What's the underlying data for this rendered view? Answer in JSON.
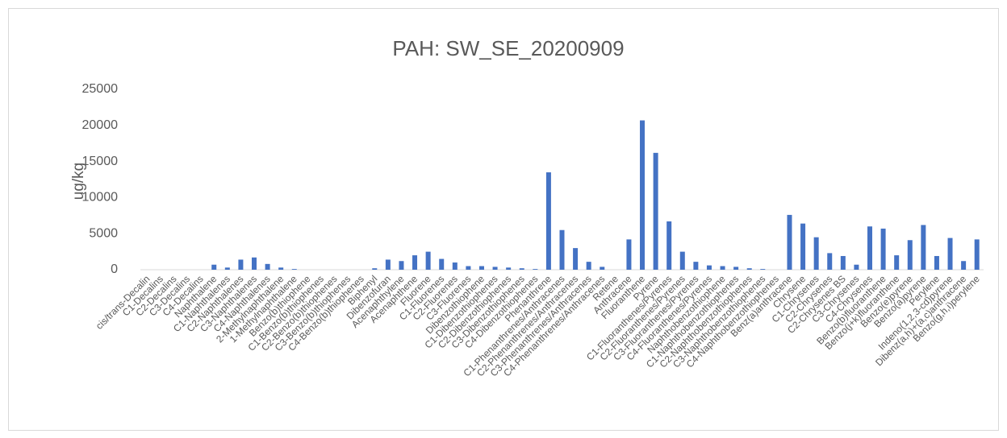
{
  "chart_data": {
    "type": "bar",
    "title": "PAH: SW_SE_20200909",
    "y_label": "ug/kg",
    "categories": [
      "cis/trans-Decalin",
      "C1-Decalins",
      "C2-Decalins",
      "C3-Decalins",
      "C4-Decalins",
      "Naphthalene",
      "C1-Naphthalenes",
      "C2-Naphthalenes",
      "C3-Naphthalenes",
      "C4-Naphthalenes",
      "2-Methylnaphthalene",
      "1-Methylnaphthalene",
      "Benzo(b)thiophene",
      "C1-Benzo(b)thiophenes",
      "C2-Benzo(b)thiophenes",
      "C3-Benzo(b)thiophenes",
      "C4-Benzo(b)thiophenes",
      "Biphenyl",
      "Dibenzofuran",
      "Acenaphthylene",
      "Acenaphthene",
      "Fluorene",
      "C1-Fluorenes",
      "C2-Fluorenes",
      "C3-Fluorenes",
      "Dibenzothiophene",
      "C1-Dibenzothiophenes",
      "C2-Dibenzothiophenes",
      "C3-Dibenzothiophenes",
      "C4-Dibenzothiophenes",
      "Phenanthrene",
      "C1-Phenanthrenes/Anthracenes",
      "C2-Phenanthrenes/Anthracenes",
      "C3-Phenanthrenes/Anthracenes",
      "C4-Phenanthrenes/Anthracenes",
      "Retene",
      "Anthracene",
      "Fluoranthene",
      "Pyrene",
      "C1-Fluoranthenes/Pyrenes",
      "C2-Fluoranthenes/Pyrenes",
      "C3-Fluoranthenes/Pyrenes",
      "C4-Fluoranthenes/Pyrenes",
      "Naphthobenzothiophene",
      "C1-Naphthobenzothiophenes",
      "C2-Naphthobenzothiophenes",
      "C3-Naphthobenzothiophenes",
      "C4-Naphthobenzothiophenes",
      "Benz(a)anthracene",
      "Chrysene",
      "C1-Chrysenes",
      "C2-Chrysenes",
      "C2-Chrysenes BS",
      "C3-Chrysenes",
      "C4-Chrysenes",
      "Benzo(b)fluoranthene",
      "Benzo(j+k)fluoranthene",
      "Benzo(e)pyrene",
      "Benzo(a)pyrene",
      "Perylene",
      "Indeno(1,2,3-cd)pyrene",
      "Dibenz(a,h)+(a,c)anthracene",
      "Benzo(g,h,i)perylene"
    ],
    "values": [
      0,
      0,
      0,
      0,
      0,
      700,
      300,
      1400,
      1700,
      800,
      300,
      100,
      0,
      0,
      0,
      0,
      0,
      200,
      1400,
      1200,
      2000,
      2500,
      1500,
      1000,
      500,
      500,
      400,
      300,
      200,
      100,
      13500,
      5500,
      3000,
      1100,
      400,
      0,
      4200,
      20700,
      16200,
      6700,
      2500,
      1100,
      600,
      500,
      400,
      200,
      100,
      0,
      7600,
      6400,
      4500,
      2300,
      1900,
      700,
      6000,
      5700,
      2000,
      4100,
      6200,
      1900,
      4400,
      1200,
      4200
    ],
    "color": "#4472c4",
    "ylim": [
      0,
      25000
    ],
    "yticks": [
      0,
      5000,
      10000,
      15000,
      20000,
      25000
    ],
    "grid": false
  }
}
